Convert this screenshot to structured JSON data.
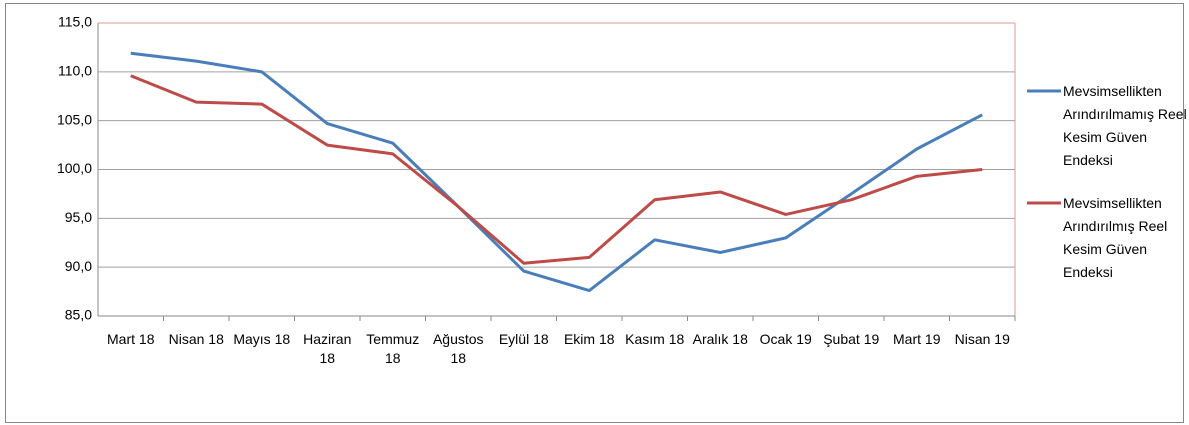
{
  "chart_data": {
    "type": "line",
    "categories": [
      "Mart 18",
      "Nisan 18",
      "Mayıs 18",
      "Haziran 18",
      "Temmuz 18",
      "Ağustos 18",
      "Eylül 18",
      "Ekim 18",
      "Kasım 18",
      "Aralık 18",
      "Ocak 19",
      "Şubat 19",
      "Mart 19",
      "Nisan 19"
    ],
    "series": [
      {
        "name": "Mevsimsellikten Arındırılmamış Reel Kesim Güven Endeksi",
        "color": "#4a7ebb",
        "values": [
          111.9,
          111.1,
          110.0,
          104.7,
          102.7,
          96.2,
          89.6,
          87.6,
          92.8,
          91.5,
          93.0,
          97.5,
          102.1,
          105.6
        ]
      },
      {
        "name": "Mevsimsellikten Arındırılmış Reel Kesim Güven Endeksi",
        "color": "#be4b48",
        "values": [
          109.6,
          106.9,
          106.7,
          102.5,
          101.6,
          96.2,
          90.4,
          91.0,
          96.9,
          97.7,
          95.4,
          96.9,
          99.3,
          100.0
        ]
      }
    ],
    "ylim": [
      85,
      115
    ],
    "yticks": [
      {
        "value": 85,
        "label": "85,0"
      },
      {
        "value": 90,
        "label": "90,0"
      },
      {
        "value": 95,
        "label": "95,0"
      },
      {
        "value": 100,
        "label": "100,0"
      },
      {
        "value": 105,
        "label": "105,0"
      },
      {
        "value": 110,
        "label": "110,0"
      },
      {
        "value": 115,
        "label": "115,0"
      }
    ],
    "grid": true,
    "legend": "right"
  }
}
